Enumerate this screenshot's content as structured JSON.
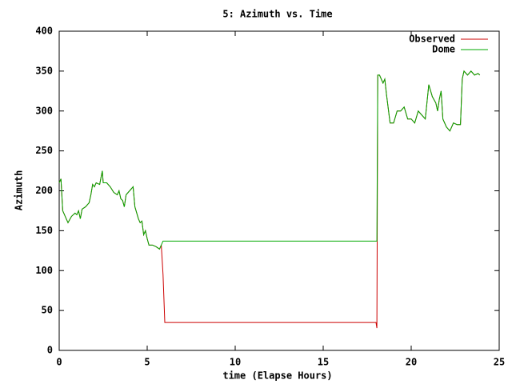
{
  "chart_data": {
    "type": "line",
    "title": "5: Azimuth vs. Time",
    "xlabel": "time (Elapse Hours)",
    "ylabel": "Azimuth",
    "xlim": [
      0,
      25
    ],
    "xticks": [
      0,
      5,
      10,
      15,
      20,
      25
    ],
    "ylim": [
      0,
      400
    ],
    "yticks": [
      0,
      50,
      100,
      150,
      200,
      250,
      300,
      350,
      400
    ],
    "grid": false,
    "legend": "upper right",
    "x": [
      0,
      0.1,
      0.2,
      0.4,
      0.5,
      0.7,
      0.9,
      1.0,
      1.1,
      1.2,
      1.3,
      1.5,
      1.7,
      1.8,
      1.9,
      2.0,
      2.1,
      2.3,
      2.45,
      2.5,
      2.7,
      2.9,
      3.1,
      3.3,
      3.4,
      3.5,
      3.6,
      3.7,
      3.8,
      4.0,
      4.2,
      4.3,
      4.5,
      4.6,
      4.7,
      4.8,
      4.9,
      5.0,
      5.1,
      5.3,
      5.5,
      5.7,
      5.8,
      5.9,
      6.0,
      10,
      18,
      18.05,
      18.1,
      18.2,
      18.4,
      18.5,
      18.6,
      18.8,
      19.0,
      19.2,
      19.4,
      19.6,
      19.8,
      20.0,
      20.2,
      20.4,
      20.6,
      20.8,
      21.0,
      21.2,
      21.4,
      21.5,
      21.6,
      21.7,
      21.8,
      22.0,
      22.2,
      22.4,
      22.6,
      22.8,
      22.9,
      23.0,
      23.2,
      23.4,
      23.6,
      23.8,
      23.9
    ],
    "series": [
      {
        "name": "Observed",
        "color": "#cc0000",
        "values": [
          210,
          215,
          175,
          165,
          160,
          168,
          172,
          170,
          175,
          165,
          177,
          180,
          185,
          195,
          208,
          205,
          210,
          208,
          225,
          210,
          210,
          205,
          198,
          195,
          200,
          190,
          188,
          180,
          195,
          200,
          205,
          180,
          165,
          160,
          162,
          145,
          150,
          140,
          132,
          132,
          130,
          127,
          132,
          95,
          35,
          35,
          35,
          28,
          345,
          345,
          335,
          340,
          320,
          285,
          285,
          300,
          300,
          305,
          290,
          290,
          285,
          300,
          295,
          290,
          333,
          318,
          310,
          300,
          315,
          325,
          290,
          280,
          275,
          285,
          283,
          283,
          340,
          350,
          345,
          350,
          345,
          347,
          345
        ]
      },
      {
        "name": "Dome",
        "color": "#00aa00",
        "values": [
          210,
          215,
          175,
          165,
          160,
          168,
          172,
          170,
          175,
          165,
          177,
          180,
          185,
          195,
          208,
          205,
          210,
          208,
          225,
          210,
          210,
          205,
          198,
          195,
          200,
          190,
          188,
          180,
          195,
          200,
          205,
          180,
          165,
          160,
          162,
          145,
          150,
          140,
          132,
          132,
          130,
          127,
          132,
          137,
          137,
          137,
          137,
          137,
          345,
          345,
          335,
          340,
          320,
          285,
          285,
          300,
          300,
          305,
          290,
          290,
          285,
          300,
          295,
          290,
          333,
          318,
          310,
          300,
          315,
          325,
          290,
          280,
          275,
          285,
          283,
          283,
          340,
          350,
          345,
          350,
          345,
          347,
          345
        ]
      }
    ]
  }
}
